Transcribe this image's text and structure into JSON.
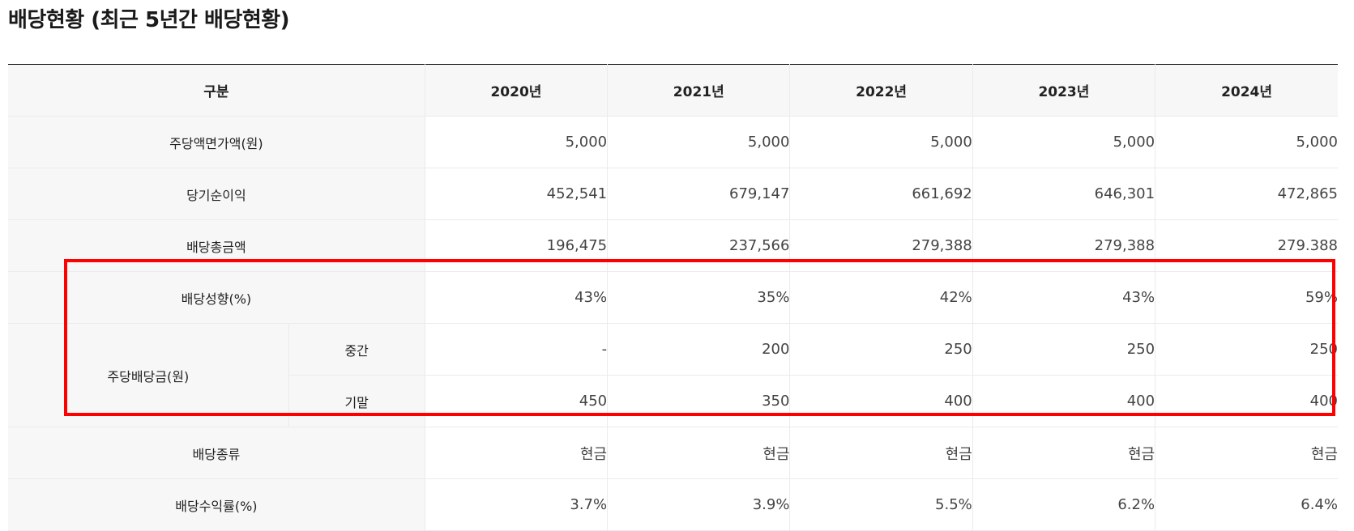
{
  "title": "배당현황 (최근 5년간 배당현황)",
  "table": {
    "header": {
      "category": "구분",
      "years": [
        "2020년",
        "2021년",
        "2022년",
        "2023년",
        "2024년"
      ]
    },
    "rows": {
      "face_value": {
        "label": "주당액면가액(원)",
        "values": [
          "5,000",
          "5,000",
          "5,000",
          "5,000",
          "5,000"
        ]
      },
      "net_income": {
        "label": "당기순이익",
        "values": [
          "452,541",
          "679,147",
          "661,692",
          "646,301",
          "472,865"
        ]
      },
      "total_dividend": {
        "label": "배당총금액",
        "values": [
          "196,475",
          "237,566",
          "279,388",
          "279,388",
          "279.388"
        ]
      },
      "payout_ratio": {
        "label": "배당성향(%)",
        "values": [
          "43%",
          "35%",
          "42%",
          "43%",
          "59%"
        ]
      },
      "dps": {
        "label": "주당배당금(원)",
        "interim": {
          "label": "중간",
          "values": [
            "-",
            "200",
            "250",
            "250",
            "250"
          ]
        },
        "final": {
          "label": "기말",
          "values": [
            "450",
            "350",
            "400",
            "400",
            "400"
          ]
        }
      },
      "dividend_type": {
        "label": "배당종류",
        "values": [
          "현금",
          "현금",
          "현금",
          "현금",
          "현금"
        ]
      },
      "dividend_yield": {
        "label": "배당수익률(%)",
        "values": [
          "3.7%",
          "3.9%",
          "5.5%",
          "6.2%",
          "6.4%"
        ]
      }
    }
  },
  "highlight_color": "#ff0000"
}
